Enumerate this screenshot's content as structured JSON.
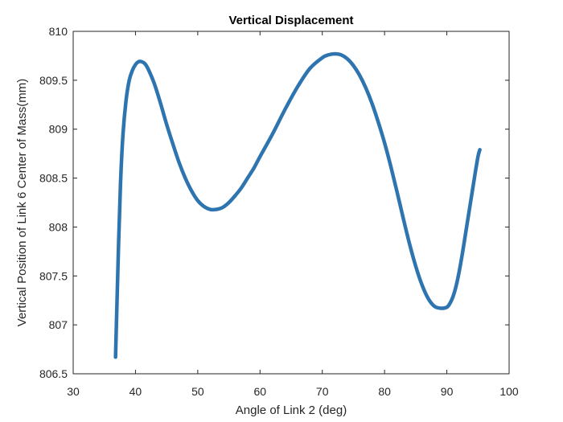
{
  "chart_data": {
    "type": "line",
    "title": "Vertical Displacement",
    "xlabel": "Angle of Link 2 (deg)",
    "ylabel": "Vertical Position of Link 6 Center of Mass(mm)",
    "xlim": [
      30,
      100
    ],
    "ylim": [
      806.5,
      810
    ],
    "xticks": [
      30,
      40,
      50,
      60,
      70,
      80,
      90,
      100
    ],
    "yticks": [
      806.5,
      807,
      807.5,
      808,
      808.5,
      809,
      809.5,
      810
    ],
    "xtick_labels": [
      "30",
      "40",
      "50",
      "60",
      "70",
      "80",
      "90",
      "100"
    ],
    "ytick_labels": [
      "806.5",
      "807",
      "807.5",
      "808",
      "808.5",
      "809",
      "809.5",
      "810"
    ],
    "grid": false,
    "line_color": "#2e75b0",
    "series": [
      {
        "x": [
          36.8,
          37.0,
          37.3,
          37.6,
          38.0,
          38.5,
          39.0,
          39.5,
          40.0,
          40.5,
          41.0,
          41.5,
          42.0,
          43.0,
          44.0,
          45.0,
          46.0,
          47.0,
          48.0,
          49.0,
          50.0,
          51.0,
          52.0,
          53.0,
          54.0,
          55.0,
          56.0,
          57.0,
          58.0,
          59.0,
          60.0,
          62.0,
          64.0,
          66.0,
          68.0,
          70.0,
          71.0,
          72.0,
          73.0,
          74.0,
          75.0,
          76.0,
          77.0,
          78.0,
          79.0,
          80.0,
          81.0,
          82.0,
          83.0,
          84.0,
          85.0,
          86.0,
          87.0,
          88.0,
          89.0,
          90.0,
          90.5,
          91.0,
          91.5,
          92.0,
          92.5,
          93.0,
          93.5,
          94.0,
          94.5,
          95.0,
          95.3
        ],
        "y": [
          806.67,
          807.15,
          807.85,
          808.45,
          808.95,
          809.3,
          809.5,
          809.6,
          809.66,
          809.69,
          809.69,
          809.67,
          809.62,
          809.47,
          809.27,
          809.05,
          808.85,
          808.66,
          808.5,
          808.37,
          808.27,
          808.21,
          808.18,
          808.18,
          808.2,
          808.25,
          808.32,
          808.4,
          808.5,
          808.6,
          808.72,
          808.95,
          809.2,
          809.43,
          809.62,
          809.73,
          809.76,
          809.77,
          809.76,
          809.72,
          809.65,
          809.55,
          809.42,
          809.26,
          809.07,
          808.86,
          808.62,
          808.36,
          808.09,
          807.83,
          807.6,
          807.41,
          807.27,
          807.19,
          807.17,
          807.18,
          807.22,
          807.29,
          807.4,
          807.55,
          807.73,
          807.93,
          808.13,
          808.33,
          808.53,
          808.72,
          808.79
        ]
      }
    ]
  }
}
